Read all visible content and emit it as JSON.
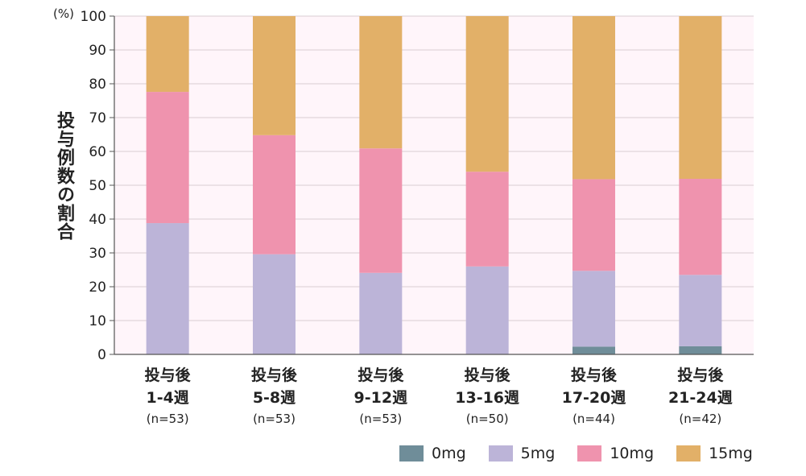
{
  "chart_data": {
    "type": "bar",
    "stacked": true,
    "ylabel": "投与例数の割合",
    "unit": "(%)",
    "ylim": [
      0,
      100
    ],
    "yticks": [
      0,
      10,
      20,
      30,
      40,
      50,
      60,
      70,
      80,
      90,
      100
    ],
    "grid": true,
    "legend_placement": "bottom-right",
    "categories": [
      {
        "line1": "投与後",
        "line2": "1-4週",
        "line3": "(n=53)"
      },
      {
        "line1": "投与後",
        "line2": "5-8週",
        "line3": "(n=53)"
      },
      {
        "line1": "投与後",
        "line2": "9-12週",
        "line3": "(n=53)"
      },
      {
        "line1": "投与後",
        "line2": "13-16週",
        "line3": "(n=50)"
      },
      {
        "line1": "投与後",
        "line2": "17-20週",
        "line3": "(n=44)"
      },
      {
        "line1": "投与後",
        "line2": "21-24週",
        "line3": "(n=42)"
      }
    ],
    "series": [
      {
        "name": "0mg",
        "color": "#6f8d99",
        "values": [
          0,
          0,
          0,
          0,
          2.3,
          2.4
        ]
      },
      {
        "name": "5mg",
        "color": "#bcb4d8",
        "values": [
          38.8,
          29.6,
          24.1,
          26.0,
          22.4,
          21.1
        ]
      },
      {
        "name": "10mg",
        "color": "#ef93ae",
        "values": [
          38.8,
          35.2,
          36.8,
          28.0,
          27.1,
          28.4
        ]
      },
      {
        "name": "15mg",
        "color": "#e2b068",
        "values": [
          22.4,
          35.2,
          39.1,
          46.0,
          48.2,
          48.1
        ]
      }
    ],
    "colors": {
      "plot_background": "#fff5fa",
      "grid": "#d9cdd3",
      "axis": "#555555"
    }
  }
}
